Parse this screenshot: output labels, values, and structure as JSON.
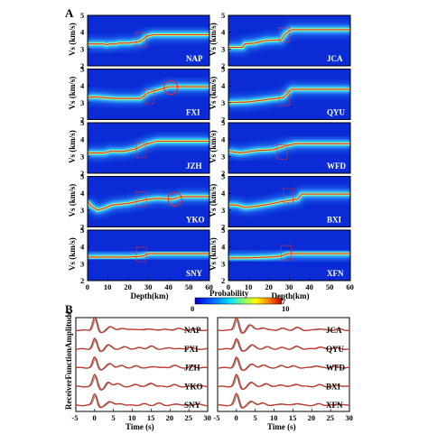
{
  "panel_labels": {
    "A": "A",
    "B": "B"
  },
  "colorbar": {
    "label": "Probability",
    "min_label": "0",
    "max_label": "10",
    "note": "7"
  },
  "colors": {
    "bg": "#0a2bd6",
    "band": "#3fd9ff",
    "core": "#b8ff7a",
    "line": "#e8282b",
    "rf_red": "#c0392b",
    "rf_gray": "#8a8a8a"
  },
  "chart_data": [
    {
      "type": "heatmap",
      "title": "",
      "xlabel": "Depth(km)",
      "ylabel": "Vs (km/s)",
      "xlim": [
        0,
        60
      ],
      "ylim": [
        2,
        5
      ],
      "x_ticks": [
        "0",
        "10",
        "20",
        "30",
        "40",
        "50",
        "60"
      ],
      "y_ticks": [
        "2",
        "3",
        "4",
        "5"
      ],
      "stations": [
        {
          "name": "NAP",
          "col": 0,
          "row": 0,
          "moho": [
            0,
            3.3,
            8,
            3.3,
            9,
            3.25,
            11,
            3.3,
            14,
            3.3,
            15,
            3.35,
            20,
            3.35,
            26,
            3.45,
            29,
            3.75,
            32,
            3.85,
            60,
            3.85
          ],
          "box": [
            24,
            3.5
          ],
          "circle": null
        },
        {
          "name": "JCA",
          "col": 1,
          "row": 0,
          "moho": [
            0,
            3.1,
            7,
            3.1,
            8,
            3.3,
            13,
            3.35,
            18,
            3.5,
            26,
            3.55,
            28,
            3.9,
            31,
            4.15,
            60,
            4.15
          ],
          "box": [
            25,
            3.8
          ],
          "circle": null
        },
        {
          "name": "FXI",
          "col": 0,
          "row": 1,
          "moho": [
            0,
            3.3,
            3,
            3.35,
            8,
            3.3,
            14,
            3.25,
            26,
            3.25,
            30,
            3.6,
            36,
            3.8,
            40,
            3.95,
            60,
            3.95
          ],
          "box": [
            28,
            3.3
          ],
          "circle": [
            41,
            3.9
          ]
        },
        {
          "name": "QYU",
          "col": 1,
          "row": 1,
          "moho": [
            0,
            3.0,
            10,
            3.05,
            20,
            3.2,
            27,
            3.3,
            31,
            3.8,
            60,
            3.8
          ],
          "box": [
            25,
            3.2
          ],
          "circle": null
        },
        {
          "name": "JZH",
          "col": 0,
          "row": 2,
          "moho": [
            0,
            3.2,
            8,
            3.2,
            11,
            3.3,
            18,
            3.3,
            24,
            3.45,
            28,
            3.7,
            34,
            3.9,
            60,
            3.9
          ],
          "box": [
            24,
            3.3
          ],
          "circle": null
        },
        {
          "name": "WFD",
          "col": 1,
          "row": 2,
          "moho": [
            0,
            3.3,
            6,
            3.2,
            14,
            3.35,
            22,
            3.4,
            29,
            3.65,
            33,
            3.75,
            60,
            3.75
          ],
          "box": [
            24,
            3.2
          ],
          "circle": null
        },
        {
          "name": "YKO",
          "col": 0,
          "row": 3,
          "moho": [
            0,
            3.5,
            2,
            3.2,
            5,
            3.0,
            8,
            3.1,
            12,
            3.3,
            20,
            3.4,
            28,
            3.6,
            34,
            3.7,
            42,
            3.65,
            46,
            3.8,
            60,
            3.8
          ],
          "box": [
            24,
            3.6
          ],
          "circle": [
            43,
            3.65
          ]
        },
        {
          "name": "BXI",
          "col": 1,
          "row": 3,
          "moho": [
            0,
            3.3,
            4,
            3.3,
            8,
            3.15,
            12,
            3.2,
            20,
            3.35,
            26,
            3.5,
            34,
            3.65,
            36,
            3.95,
            60,
            3.95
          ],
          "box": [
            27,
            3.8
          ],
          "circle": null
        },
        {
          "name": "SNY",
          "col": 0,
          "row": 4,
          "moho": [
            0,
            3.4,
            20,
            3.4,
            27,
            3.45,
            30,
            3.6,
            60,
            3.6
          ],
          "box": [
            24,
            3.5
          ],
          "circle": null
        },
        {
          "name": "XFN",
          "col": 1,
          "row": 4,
          "moho": [
            0,
            3.35,
            10,
            3.35,
            20,
            3.4,
            26,
            3.45,
            29,
            3.6,
            60,
            3.6
          ],
          "box": [
            26,
            3.6
          ],
          "circle": null
        }
      ]
    },
    {
      "type": "line",
      "title": "",
      "xlabel": "Time (s)",
      "ylabel": "ReceiverFunctionAmplitude",
      "xlim": [
        -5,
        30
      ],
      "x_ticks": [
        "-5",
        "0",
        "5",
        "10",
        "15",
        "20",
        "25",
        "30"
      ],
      "series": [
        {
          "name": "NAP",
          "col": 0,
          "row": 0,
          "peaks": [
            0,
            1.0,
            1.5,
            -0.2,
            4,
            0.25,
            7,
            0.15,
            10,
            0.1,
            14,
            0.12,
            18,
            0.08,
            22,
            0.15,
            26,
            0.1
          ]
        },
        {
          "name": "FXI",
          "col": 0,
          "row": 1,
          "peaks": [
            0,
            0.8,
            1.5,
            -0.2,
            3.5,
            0.3,
            8,
            0.15,
            12,
            0.1,
            15,
            0.2,
            20,
            0.1,
            25,
            0.12
          ]
        },
        {
          "name": "JZH",
          "col": 0,
          "row": 2,
          "peaks": [
            0,
            0.8,
            1.5,
            -0.15,
            4,
            0.3,
            7,
            0.15,
            11,
            0.12,
            16,
            0.1,
            21,
            0.18,
            26,
            0.1
          ]
        },
        {
          "name": "YKO",
          "col": 0,
          "row": 3,
          "peaks": [
            0,
            0.9,
            2,
            -0.3,
            3.5,
            0.35,
            6,
            0.2,
            11,
            0.15,
            15,
            0.25,
            21,
            0.12,
            27,
            0.1
          ]
        },
        {
          "name": "SNY",
          "col": 0,
          "row": 4,
          "peaks": [
            0,
            0.9,
            1.5,
            -0.2,
            4,
            0.3,
            7,
            0.12,
            13,
            0.1,
            17,
            0.15,
            22,
            0.1,
            27,
            0.1
          ]
        },
        {
          "name": "JCA",
          "col": 1,
          "row": 0,
          "peaks": [
            0,
            1.0,
            1.5,
            -0.3,
            3.5,
            0.45,
            7,
            0.2,
            12,
            0.15,
            16,
            0.2,
            22,
            0.12,
            27,
            0.1
          ]
        },
        {
          "name": "QYU",
          "col": 1,
          "row": 1,
          "peaks": [
            0,
            0.8,
            1.5,
            -0.2,
            4,
            0.3,
            8,
            0.15,
            12,
            0.1,
            16,
            0.18,
            22,
            0.15,
            26,
            0.1
          ]
        },
        {
          "name": "WFD",
          "col": 1,
          "row": 2,
          "peaks": [
            0,
            0.8,
            1.5,
            -0.2,
            4,
            0.25,
            7,
            0.2,
            12,
            0.15,
            15,
            0.12,
            21,
            0.15,
            26,
            0.1
          ]
        },
        {
          "name": "BXI",
          "col": 1,
          "row": 3,
          "peaks": [
            0,
            0.9,
            1.5,
            -0.2,
            4,
            0.3,
            8,
            0.2,
            12,
            0.12,
            16,
            0.18,
            22,
            0.12,
            27,
            0.1
          ]
        },
        {
          "name": "XFN",
          "col": 1,
          "row": 4,
          "peaks": [
            0,
            0.9,
            1.5,
            -0.2,
            4,
            0.3,
            7,
            0.15,
            12,
            0.12,
            16,
            0.15,
            22,
            0.1,
            27,
            0.1
          ]
        }
      ]
    }
  ]
}
